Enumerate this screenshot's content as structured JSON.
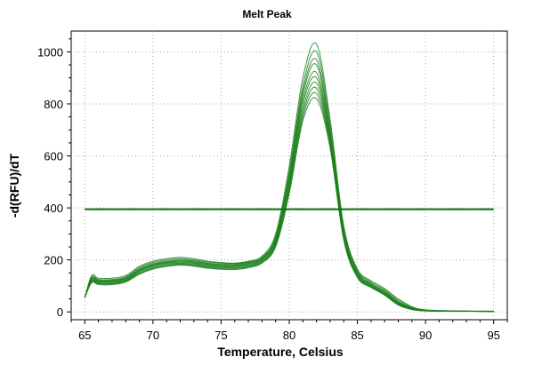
{
  "chart_data": {
    "type": "line",
    "title": "Melt Peak",
    "xlabel": "Temperature, Celsius",
    "ylabel": "-d(RFU)/dT",
    "xlim": [
      64,
      96
    ],
    "ylim": [
      -30,
      1080
    ],
    "x_ticks": [
      65,
      70,
      75,
      80,
      85,
      90,
      95
    ],
    "y_ticks": [
      0,
      200,
      400,
      600,
      800,
      1000
    ],
    "grid": true,
    "legend": "none",
    "colors": {
      "curve": "#1a7f1a",
      "threshold": "#0a6e0a",
      "grid": "#aaaaaa"
    },
    "threshold": 395,
    "series": [
      {
        "peak": 1030,
        "plateau": 180,
        "x": [
          65,
          65.5,
          66,
          67,
          68,
          69,
          70,
          71,
          72,
          73,
          74,
          75,
          76,
          77,
          78,
          79,
          80,
          81,
          82,
          83,
          84,
          85,
          86,
          87,
          88,
          89,
          90,
          92,
          95
        ],
        "y": [
          55,
          140,
          130,
          130,
          140,
          175,
          195,
          205,
          210,
          205,
          195,
          190,
          188,
          195,
          215,
          300,
          560,
          900,
          1030,
          740,
          330,
          165,
          120,
          90,
          50,
          20,
          8,
          4,
          3
        ]
      },
      {
        "peak": 1000,
        "plateau": 190,
        "x": [
          65,
          65.5,
          66,
          67,
          68,
          69,
          70,
          71,
          72,
          73,
          74,
          75,
          76,
          77,
          78,
          79,
          80,
          81,
          82,
          83,
          84,
          85,
          86,
          87,
          88,
          89,
          90,
          92,
          95
        ],
        "y": [
          55,
          135,
          125,
          125,
          135,
          170,
          190,
          200,
          205,
          200,
          192,
          188,
          186,
          192,
          210,
          290,
          540,
          870,
          1000,
          720,
          320,
          160,
          115,
          85,
          45,
          18,
          7,
          4,
          2
        ]
      },
      {
        "peak": 970,
        "plateau": 200,
        "x": [
          65,
          65.5,
          66,
          67,
          68,
          69,
          70,
          71,
          72,
          73,
          74,
          75,
          76,
          77,
          78,
          79,
          80,
          81,
          82,
          83,
          84,
          85,
          86,
          87,
          88,
          89,
          90,
          92,
          95
        ],
        "y": [
          55,
          130,
          122,
          122,
          132,
          165,
          185,
          195,
          200,
          196,
          188,
          184,
          183,
          190,
          208,
          285,
          525,
          850,
          970,
          700,
          310,
          155,
          110,
          80,
          40,
          16,
          6,
          3,
          2
        ]
      },
      {
        "peak": 950,
        "plateau": 200,
        "x": [
          65,
          65.5,
          66,
          67,
          68,
          69,
          70,
          71,
          72,
          73,
          74,
          75,
          76,
          77,
          78,
          79,
          80,
          81,
          82,
          83,
          84,
          85,
          86,
          87,
          88,
          89,
          90,
          92,
          95
        ],
        "y": [
          55,
          128,
          120,
          120,
          130,
          162,
          182,
          192,
          197,
          193,
          185,
          181,
          180,
          187,
          205,
          280,
          515,
          835,
          950,
          690,
          305,
          150,
          108,
          78,
          38,
          15,
          6,
          3,
          2
        ]
      },
      {
        "peak": 920,
        "plateau": 195,
        "x": [
          65,
          65.5,
          66,
          67,
          68,
          69,
          70,
          71,
          72,
          73,
          74,
          75,
          76,
          77,
          78,
          79,
          80,
          81,
          82,
          83,
          84,
          85,
          86,
          87,
          88,
          89,
          90,
          92,
          95
        ],
        "y": [
          55,
          125,
          118,
          118,
          128,
          160,
          180,
          190,
          195,
          190,
          183,
          179,
          178,
          185,
          203,
          275,
          505,
          815,
          920,
          680,
          300,
          148,
          105,
          75,
          36,
          14,
          5,
          3,
          2
        ]
      },
      {
        "peak": 900,
        "plateau": 185,
        "x": [
          65,
          65.5,
          66,
          67,
          68,
          69,
          70,
          71,
          72,
          73,
          74,
          75,
          76,
          77,
          78,
          79,
          80,
          81,
          82,
          83,
          84,
          85,
          86,
          87,
          88,
          89,
          90,
          92,
          95
        ],
        "y": [
          55,
          122,
          115,
          115,
          125,
          157,
          177,
          187,
          191,
          187,
          180,
          176,
          175,
          182,
          200,
          270,
          495,
          800,
          900,
          670,
          295,
          145,
          102,
          72,
          34,
          13,
          5,
          3,
          2
        ]
      },
      {
        "peak": 880,
        "plateau": 180,
        "x": [
          65,
          65.5,
          66,
          67,
          68,
          69,
          70,
          71,
          72,
          73,
          74,
          75,
          76,
          77,
          78,
          79,
          80,
          81,
          82,
          83,
          84,
          85,
          86,
          87,
          88,
          89,
          90,
          92,
          95
        ],
        "y": [
          55,
          120,
          112,
          112,
          122,
          154,
          174,
          184,
          188,
          184,
          177,
          173,
          172,
          179,
          197,
          265,
          485,
          780,
          880,
          660,
          290,
          140,
          100,
          70,
          32,
          12,
          5,
          3,
          2
        ]
      },
      {
        "peak": 860,
        "plateau": 175,
        "x": [
          65,
          65.5,
          66,
          67,
          68,
          69,
          70,
          71,
          72,
          73,
          74,
          75,
          76,
          77,
          78,
          79,
          80,
          81,
          82,
          83,
          84,
          85,
          86,
          87,
          88,
          89,
          90,
          92,
          95
        ],
        "y": [
          55,
          118,
          110,
          110,
          120,
          150,
          170,
          180,
          185,
          181,
          174,
          170,
          169,
          176,
          194,
          260,
          475,
          765,
          860,
          650,
          285,
          138,
          98,
          68,
          30,
          11,
          4,
          3,
          2
        ]
      },
      {
        "peak": 840,
        "plateau": 170,
        "x": [
          65,
          65.5,
          66,
          67,
          68,
          69,
          70,
          71,
          72,
          73,
          74,
          75,
          76,
          77,
          78,
          79,
          80,
          81,
          82,
          83,
          84,
          85,
          86,
          87,
          88,
          89,
          90,
          92,
          95
        ],
        "y": [
          55,
          115,
          108,
          108,
          118,
          147,
          167,
          177,
          182,
          178,
          171,
          167,
          166,
          173,
          191,
          255,
          465,
          750,
          840,
          640,
          280,
          135,
          96,
          66,
          28,
          10,
          4,
          3,
          2
        ]
      },
      {
        "peak": 820,
        "plateau": 165,
        "x": [
          65,
          65.5,
          66,
          67,
          68,
          69,
          70,
          71,
          72,
          73,
          74,
          75,
          76,
          77,
          78,
          79,
          80,
          81,
          82,
          83,
          84,
          85,
          86,
          87,
          88,
          89,
          90,
          92,
          95
        ],
        "y": [
          55,
          112,
          105,
          105,
          115,
          145,
          165,
          175,
          180,
          176,
          168,
          164,
          163,
          170,
          188,
          250,
          455,
          735,
          820,
          630,
          275,
          132,
          94,
          64,
          26,
          9,
          4,
          3,
          2
        ]
      }
    ]
  }
}
